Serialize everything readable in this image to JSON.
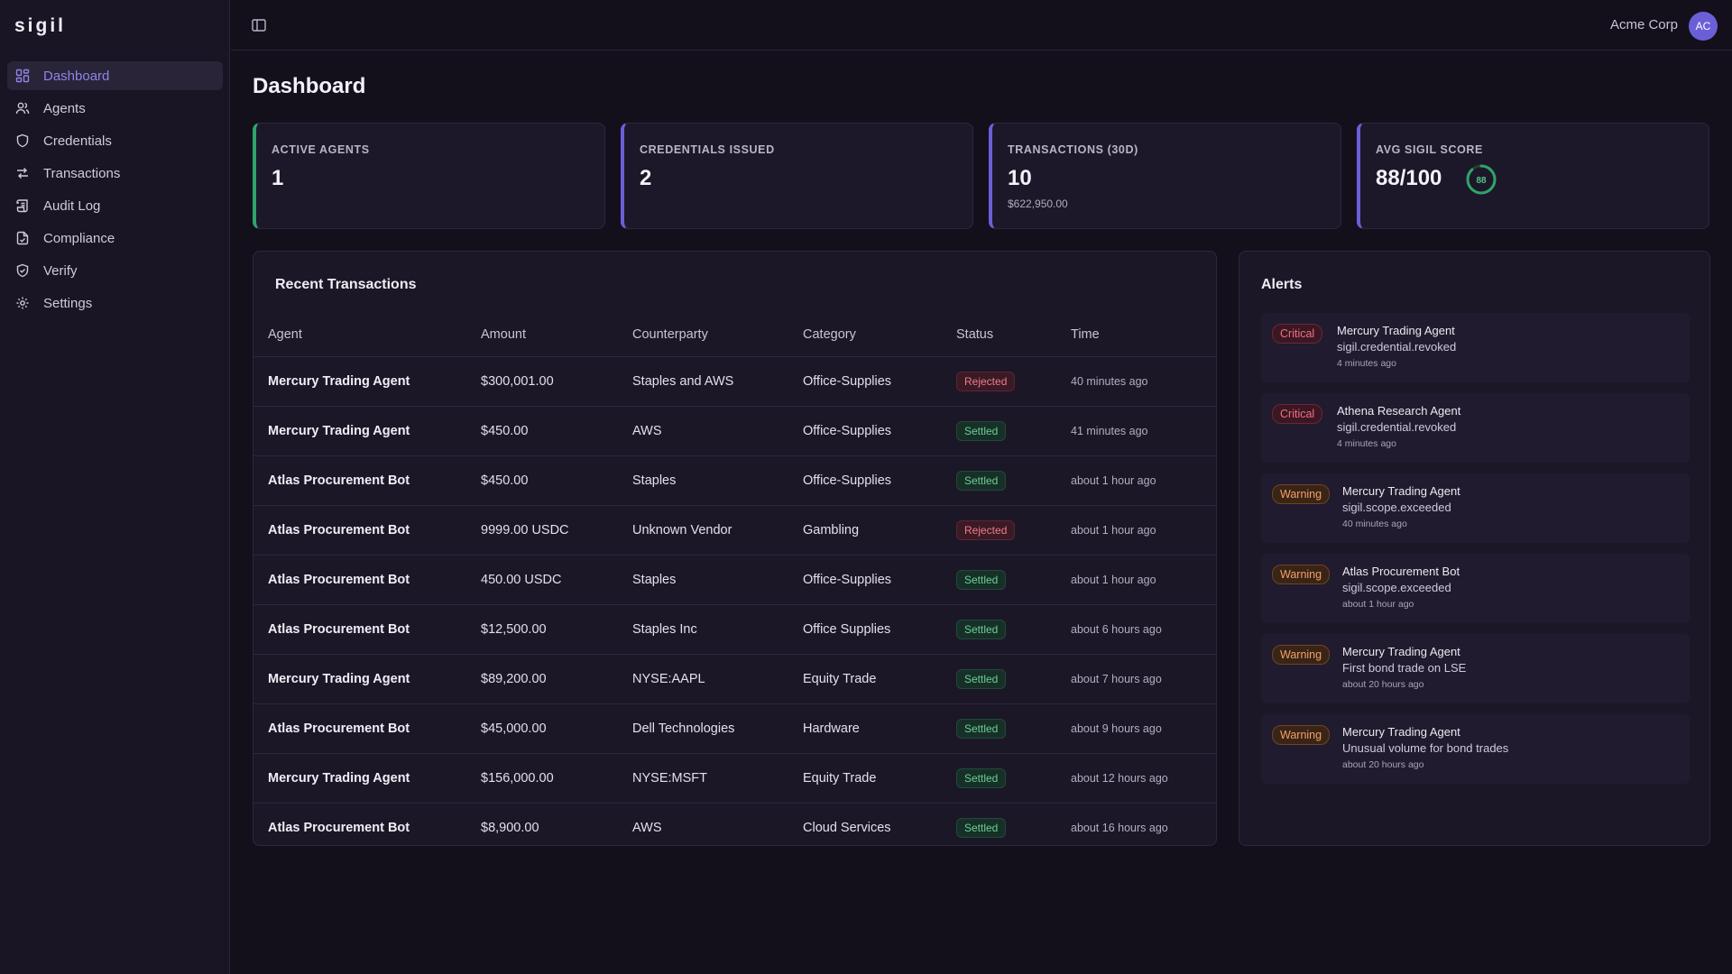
{
  "app": {
    "logo": "sigil"
  },
  "sidebar": {
    "items": [
      {
        "label": "Dashboard",
        "icon": "dashboard-icon"
      },
      {
        "label": "Agents",
        "icon": "users-icon"
      },
      {
        "label": "Credentials",
        "icon": "shield-icon"
      },
      {
        "label": "Transactions",
        "icon": "arrows-swap-icon"
      },
      {
        "label": "Audit Log",
        "icon": "scroll-icon"
      },
      {
        "label": "Compliance",
        "icon": "file-check-icon"
      },
      {
        "label": "Verify",
        "icon": "shield-check-icon"
      },
      {
        "label": "Settings",
        "icon": "gear-icon"
      }
    ],
    "active": "Dashboard"
  },
  "header": {
    "org": "Acme Corp",
    "avatar_initials": "AC"
  },
  "page": {
    "title": "Dashboard"
  },
  "stats": [
    {
      "label": "ACTIVE AGENTS",
      "value": "1"
    },
    {
      "label": "CREDENTIALS ISSUED",
      "value": "2"
    },
    {
      "label": "TRANSACTIONS (30D)",
      "value": "10",
      "sub": "$622,950.00"
    },
    {
      "label": "AVG SIGIL SCORE",
      "value": "88/100",
      "ring_value": "88",
      "ring_fraction": 0.88
    }
  ],
  "transactions": {
    "title": "Recent Transactions",
    "columns": [
      "Agent",
      "Amount",
      "Counterparty",
      "Category",
      "Status",
      "Time"
    ],
    "rows": [
      [
        "Mercury Trading Agent",
        "$300,001.00",
        "Staples and AWS",
        "Office-Supplies",
        "Rejected",
        "40 minutes ago"
      ],
      [
        "Mercury Trading Agent",
        "$450.00",
        "AWS",
        "Office-Supplies",
        "Settled",
        "41 minutes ago"
      ],
      [
        "Atlas Procurement Bot",
        "$450.00",
        "Staples",
        "Office-Supplies",
        "Settled",
        "about 1 hour ago"
      ],
      [
        "Atlas Procurement Bot",
        "9999.00 USDC",
        "Unknown Vendor",
        "Gambling",
        "Rejected",
        "about 1 hour ago"
      ],
      [
        "Atlas Procurement Bot",
        "450.00 USDC",
        "Staples",
        "Office-Supplies",
        "Settled",
        "about 1 hour ago"
      ],
      [
        "Atlas Procurement Bot",
        "$12,500.00",
        "Staples Inc",
        "Office Supplies",
        "Settled",
        "about 6 hours ago"
      ],
      [
        "Mercury Trading Agent",
        "$89,200.00",
        "NYSE:AAPL",
        "Equity Trade",
        "Settled",
        "about 7 hours ago"
      ],
      [
        "Atlas Procurement Bot",
        "$45,000.00",
        "Dell Technologies",
        "Hardware",
        "Settled",
        "about 9 hours ago"
      ],
      [
        "Mercury Trading Agent",
        "$156,000.00",
        "NYSE:MSFT",
        "Equity Trade",
        "Settled",
        "about 12 hours ago"
      ],
      [
        "Atlas Procurement Bot",
        "$8,900.00",
        "AWS",
        "Cloud Services",
        "Settled",
        "about 16 hours ago"
      ]
    ]
  },
  "alerts": {
    "title": "Alerts",
    "items": [
      {
        "severity": "Critical",
        "agent": "Mercury Trading Agent",
        "message": "sigil.credential.revoked",
        "time": "4 minutes ago"
      },
      {
        "severity": "Critical",
        "agent": "Athena Research Agent",
        "message": "sigil.credential.revoked",
        "time": "4 minutes ago"
      },
      {
        "severity": "Warning",
        "agent": "Mercury Trading Agent",
        "message": "sigil.scope.exceeded",
        "time": "40 minutes ago"
      },
      {
        "severity": "Warning",
        "agent": "Atlas Procurement Bot",
        "message": "sigil.scope.exceeded",
        "time": "about 1 hour ago"
      },
      {
        "severity": "Warning",
        "agent": "Mercury Trading Agent",
        "message": "First bond trade on LSE",
        "time": "about 20 hours ago"
      },
      {
        "severity": "Warning",
        "agent": "Mercury Trading Agent",
        "message": "Unusual volume for bond trades",
        "time": "about 20 hours ago"
      }
    ]
  },
  "colors": {
    "accent": "#6b5fd8",
    "active_nav_text": "#8f84e8",
    "green": "#2fa46a",
    "rejected": "#f07b8a",
    "settled": "#69cf97",
    "warning": "#f0a16a"
  }
}
